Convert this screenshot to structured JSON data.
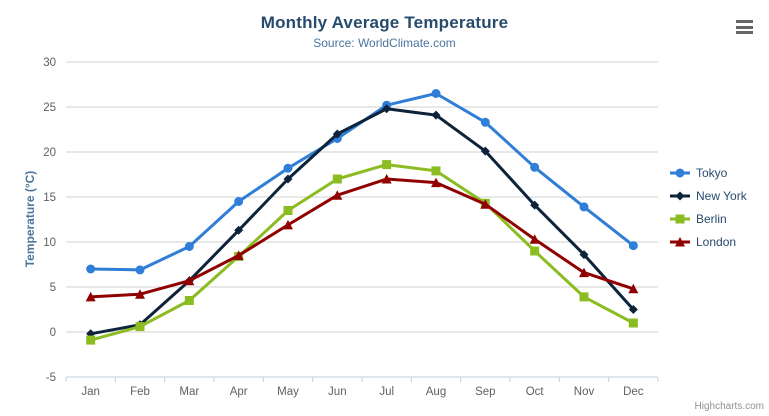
{
  "header": {
    "title": "Monthly Average Temperature",
    "subtitle": "Source: WorldClimate.com"
  },
  "colors": {
    "title": "#274b6d",
    "subtitle": "#4d759e",
    "axis_title": "#4d759e",
    "axis_label": "#606060",
    "grid": "#d0d0d0",
    "axis_line": "#c0d0e0",
    "legend_text": "#274b6d",
    "credits": "#909090",
    "menu_icon": "#666666"
  },
  "chart_data": {
    "type": "line",
    "title": "Monthly Average Temperature",
    "subtitle": "Source: WorldClimate.com",
    "xlabel": "",
    "ylabel": "Temperature (°C)",
    "ylim": [
      -5,
      30
    ],
    "yticks": [
      -5,
      0,
      5,
      10,
      15,
      20,
      25,
      30
    ],
    "grid": true,
    "legend_position": "right",
    "categories": [
      "Jan",
      "Feb",
      "Mar",
      "Apr",
      "May",
      "Jun",
      "Jul",
      "Aug",
      "Sep",
      "Oct",
      "Nov",
      "Dec"
    ],
    "series": [
      {
        "name": "Tokyo",
        "color": "#2f7ed8",
        "marker": "circle",
        "values": [
          7.0,
          6.9,
          9.5,
          14.5,
          18.2,
          21.5,
          25.2,
          26.5,
          23.3,
          18.3,
          13.9,
          9.6
        ]
      },
      {
        "name": "New York",
        "color": "#0d233a",
        "marker": "diamond",
        "values": [
          -0.2,
          0.8,
          5.7,
          11.3,
          17.0,
          22.0,
          24.8,
          24.1,
          20.1,
          14.1,
          8.6,
          2.5
        ]
      },
      {
        "name": "Berlin",
        "color": "#8bbc21",
        "marker": "square",
        "values": [
          -0.9,
          0.6,
          3.5,
          8.4,
          13.5,
          17.0,
          18.6,
          17.9,
          14.3,
          9.0,
          3.9,
          1.0
        ]
      },
      {
        "name": "London",
        "color": "#910000",
        "marker": "triangle",
        "values": [
          3.9,
          4.2,
          5.7,
          8.5,
          11.9,
          15.2,
          17.0,
          16.6,
          14.2,
          10.3,
          6.6,
          4.8
        ]
      }
    ]
  },
  "export_menu": {
    "icon": "hamburger"
  },
  "credits": {
    "label": "Highcharts.com"
  }
}
